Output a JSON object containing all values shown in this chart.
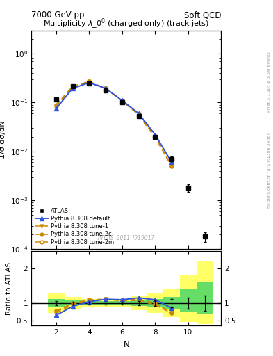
{
  "title_left": "7000 GeV pp",
  "title_right": "Soft QCD",
  "plot_title": "Multiplicity $\\lambda\\_0^0$ (charged only) (track jets)",
  "watermark": "ATLAS_2011_I919017",
  "right_label_top": "Rivet 3.1.10; ≥ 3.3M events",
  "right_label_bottom": "mcplots.cern.ch [arXiv:1306.3436]",
  "ylabel_main": "1/σ dσ/dN",
  "ylabel_ratio": "Ratio to ATLAS",
  "xlabel": "N",
  "N_atlas": [
    2,
    3,
    4,
    5,
    6,
    7,
    8,
    9,
    10,
    11
  ],
  "y_atlas": [
    0.115,
    0.215,
    0.245,
    0.175,
    0.1,
    0.052,
    0.02,
    0.007,
    0.0018,
    0.00018
  ],
  "y_atlas_err": [
    0.006,
    0.008,
    0.008,
    0.006,
    0.004,
    0.003,
    0.0015,
    0.0008,
    0.0003,
    4e-05
  ],
  "N_pythia": [
    2,
    3,
    4,
    5,
    6,
    7,
    8,
    9
  ],
  "y_default": [
    0.075,
    0.195,
    0.255,
    0.195,
    0.11,
    0.06,
    0.022,
    0.006
  ],
  "y_tune1": [
    0.087,
    0.21,
    0.268,
    0.195,
    0.108,
    0.058,
    0.02,
    0.005
  ],
  "y_tune2c": [
    0.09,
    0.215,
    0.27,
    0.195,
    0.107,
    0.056,
    0.019,
    0.005
  ],
  "y_tune2m": [
    0.082,
    0.205,
    0.262,
    0.193,
    0.108,
    0.058,
    0.02,
    0.005
  ],
  "color_atlas": "#000000",
  "color_default": "#3355dd",
  "color_orange": "#cc8800",
  "ylim_main": [
    0.0001,
    3.0
  ],
  "xlim_main": [
    0.5,
    12
  ],
  "ylim_ratio": [
    0.35,
    2.5
  ],
  "green_color": "#66dd66",
  "yellow_color": "#ffff66",
  "band_bins_x": [
    1.5,
    2.5,
    3.5,
    4.5,
    5.5,
    6.5,
    7.5,
    8.5,
    9.5,
    10.5,
    11.5
  ],
  "band_green_lo": [
    0.88,
    0.93,
    0.95,
    0.95,
    0.95,
    0.92,
    0.88,
    0.82,
    0.75,
    0.7
  ],
  "band_green_hi": [
    1.12,
    1.07,
    1.05,
    1.05,
    1.05,
    1.08,
    1.12,
    1.18,
    1.4,
    1.6
  ],
  "band_yellow_lo": [
    0.72,
    0.82,
    0.88,
    0.88,
    0.88,
    0.8,
    0.72,
    0.6,
    0.45,
    0.4
  ],
  "band_yellow_hi": [
    1.28,
    1.18,
    1.12,
    1.12,
    1.12,
    1.2,
    1.28,
    1.4,
    1.8,
    2.2
  ]
}
